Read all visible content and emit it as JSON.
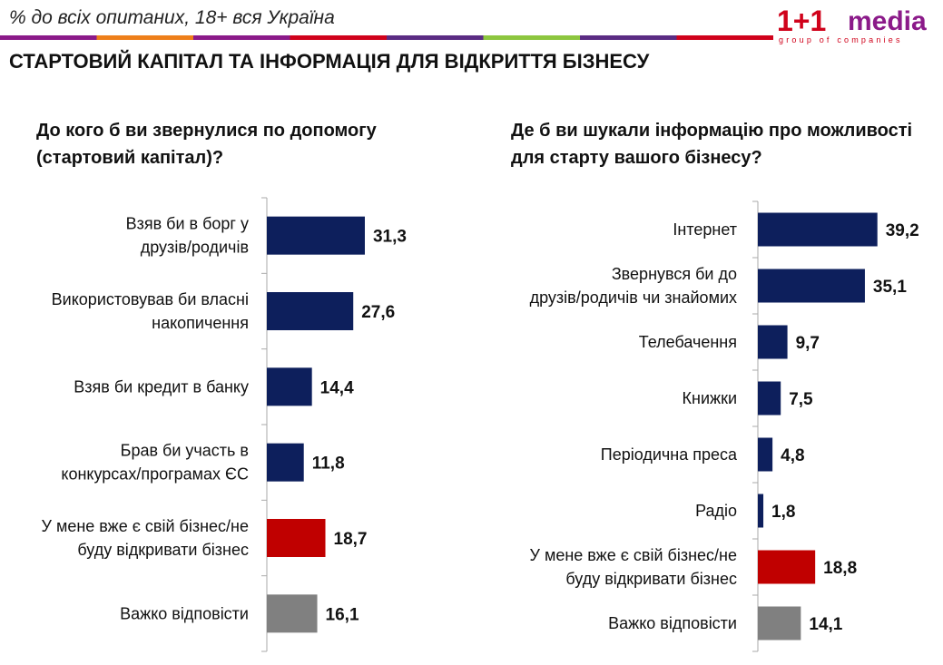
{
  "header": {
    "subtitle": "% до всіх опитаних, 18+ вся Україна",
    "logo": {
      "brand_number": "1+1",
      "brand_word": "media",
      "tagline": "group of companies"
    },
    "stripe_colors": [
      "#8b1a89",
      "#ee7f1a",
      "#8b1a89",
      "#d0021b",
      "#5b2c83",
      "#8dc63f",
      "#5b2c83",
      "#d0021b"
    ]
  },
  "title": "СТАРТОВИЙ КАПІТАЛ ТА ІНФОРМАЦІЯ ДЛЯ ВІДКРИТТЯ БІЗНЕСУ",
  "colors": {
    "main": "#0d1f5c",
    "own_business": "#c00000",
    "hard": "#808080"
  },
  "chart_data": [
    {
      "type": "bar",
      "orientation": "horizontal",
      "title": "До кого б ви звернулися по допомогу (стартовий капітал)?",
      "categories": [
        [
          "Взяв би в борг у",
          "друзів/родичів"
        ],
        [
          "Використовував би власні",
          "накопичення"
        ],
        [
          "Взяв би кредит в банку"
        ],
        [
          "Брав би участь в",
          "конкурсах/програмах ЄС"
        ],
        [
          "У мене вже є свій бізнес/не",
          "буду відкривати бізнес"
        ],
        [
          "Важко відповісти"
        ]
      ],
      "values": [
        31.3,
        27.6,
        14.4,
        11.8,
        18.7,
        16.1
      ],
      "value_labels": [
        "31,3",
        "27,6",
        "14,4",
        "11,8",
        "18,7",
        "16,1"
      ],
      "bar_colors": [
        "#0d1f5c",
        "#0d1f5c",
        "#0d1f5c",
        "#0d1f5c",
        "#c00000",
        "#808080"
      ],
      "xlim": [
        0,
        40
      ],
      "grid": false,
      "legend": "none"
    },
    {
      "type": "bar",
      "orientation": "horizontal",
      "title": "Де б ви шукали інформацію про можливості для старту вашого бізнесу?",
      "categories": [
        [
          "Інтернет"
        ],
        [
          "Звернувся би до",
          "друзів/родичів чи знайомих"
        ],
        [
          "Телебачення"
        ],
        [
          "Книжки"
        ],
        [
          "Періодична преса"
        ],
        [
          "Радіо"
        ],
        [
          "У мене вже є свій бізнес/не",
          "буду відкривати бізнес"
        ],
        [
          "Важко відповісти"
        ]
      ],
      "values": [
        39.2,
        35.1,
        9.7,
        7.5,
        4.8,
        1.8,
        18.8,
        14.1
      ],
      "value_labels": [
        "39,2",
        "35,1",
        "9,7",
        "7,5",
        "4,8",
        "1,8",
        "18,8",
        "14,1"
      ],
      "bar_colors": [
        "#0d1f5c",
        "#0d1f5c",
        "#0d1f5c",
        "#0d1f5c",
        "#0d1f5c",
        "#0d1f5c",
        "#c00000",
        "#808080"
      ],
      "xlim": [
        0,
        40
      ],
      "grid": false,
      "legend": "none"
    }
  ]
}
